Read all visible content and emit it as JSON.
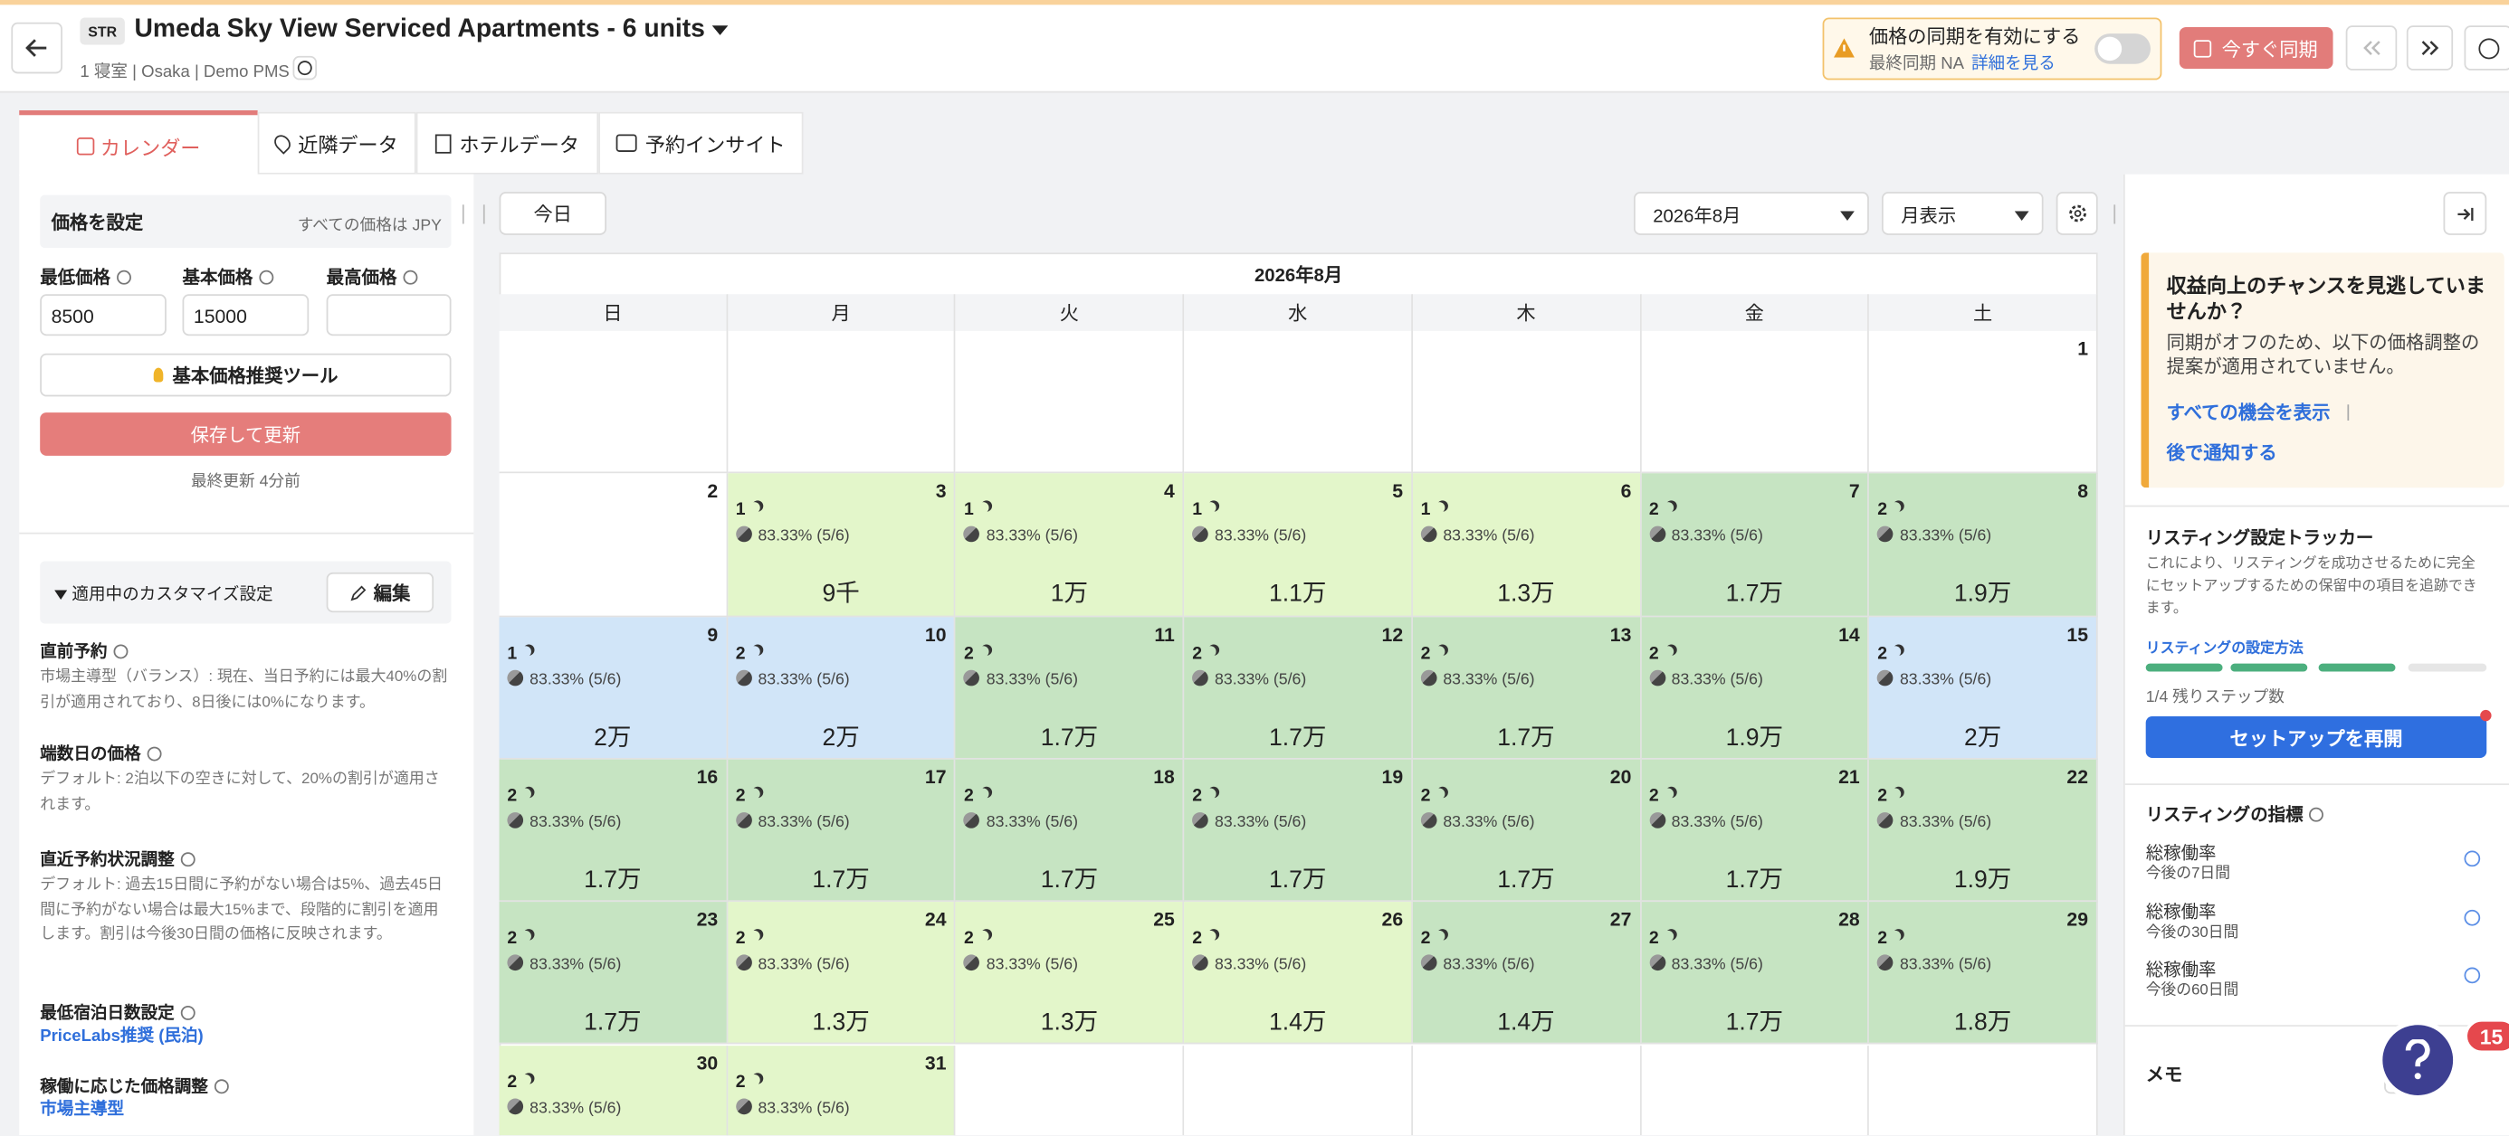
{
  "header": {
    "badge": "STR",
    "title": "Umeda Sky View Serviced Apartments - 6 units",
    "subtitle": "1 寝室 | Osaka | Demo PMS"
  },
  "sync": {
    "title": "価格の同期を有効にする",
    "last_sync": "最終同期 NA",
    "details_link": "詳細を見る",
    "sync_button": "今すぐ同期"
  },
  "tabs": [
    "カレンダー",
    "近隣データ",
    "ホテルデータ",
    "予約インサイト"
  ],
  "price_settings": {
    "title": "価格を設定",
    "currency_note": "すべての価格は JPY",
    "fields": [
      {
        "label": "最低価格",
        "value": "8500"
      },
      {
        "label": "基本価格",
        "value": "15000"
      },
      {
        "label": "最高価格"
      }
    ],
    "tool_button": "基本価格推奨ツール",
    "save_button": "保存して更新",
    "last_updated": "最終更新 4分前"
  },
  "customizations": {
    "title": "適用中のカスタマイズ設定",
    "edit_button": "編集",
    "items": [
      {
        "title": "直前予約",
        "description": "市場主導型（バランス）: 現在、当日予約には最大40%の割引が適用されており、8日後には0%になります。"
      },
      {
        "title": "端数日の価格",
        "description": "デフォルト: 2泊以下の空きに対して、20%の割引が適用されます。"
      },
      {
        "title": "直近予約状況調整",
        "description": "デフォルト: 過去15日間に予約がない場合は5%、過去45日間に予約がない場合は最大15%まで、段階的に割引を適用します。割引は今後30日間の価格に反映されます。"
      },
      {
        "title": "最低宿泊日数設定",
        "link": "PriceLabs推奨 (民泊)"
      },
      {
        "title": "稼働に応じた価格調整",
        "link": "市場主導型"
      }
    ]
  },
  "calendar": {
    "today_button": "今日",
    "month_select": "2026年8月",
    "view_select": "月表示",
    "month_title": "2026年8月",
    "weekdays": [
      "日",
      "月",
      "火",
      "水",
      "木",
      "金",
      "土"
    ],
    "days": [
      null,
      null,
      null,
      null,
      null,
      null,
      {
        "day": 1
      },
      {
        "day": 2
      },
      {
        "day": 3,
        "nights": 1,
        "occupancy": "83.33% (5/6)",
        "price": "9千",
        "color": "#e3f6ca"
      },
      {
        "day": 4,
        "nights": 1,
        "occupancy": "83.33% (5/6)",
        "price": "1万",
        "color": "#e3f6ca"
      },
      {
        "day": 5,
        "nights": 1,
        "occupancy": "83.33% (5/6)",
        "price": "1.1万",
        "color": "#e3f6ca"
      },
      {
        "day": 6,
        "nights": 1,
        "occupancy": "83.33% (5/6)",
        "price": "1.3万",
        "color": "#e3f6ca"
      },
      {
        "day": 7,
        "nights": 2,
        "occupancy": "83.33% (5/6)",
        "price": "1.7万",
        "color": "#c6e4c2"
      },
      {
        "day": 8,
        "nights": 2,
        "occupancy": "83.33% (5/6)",
        "price": "1.9万",
        "color": "#c6e4c2"
      },
      {
        "day": 9,
        "nights": 1,
        "occupancy": "83.33% (5/6)",
        "price": "2万",
        "color": "#d1e5f8"
      },
      {
        "day": 10,
        "nights": 2,
        "occupancy": "83.33% (5/6)",
        "price": "2万",
        "color": "#d1e5f8"
      },
      {
        "day": 11,
        "nights": 2,
        "occupancy": "83.33% (5/6)",
        "price": "1.7万",
        "color": "#c6e4c2"
      },
      {
        "day": 12,
        "nights": 2,
        "occupancy": "83.33% (5/6)",
        "price": "1.7万",
        "color": "#c6e4c2"
      },
      {
        "day": 13,
        "nights": 2,
        "occupancy": "83.33% (5/6)",
        "price": "1.7万",
        "color": "#c6e4c2"
      },
      {
        "day": 14,
        "nights": 2,
        "occupancy": "83.33% (5/6)",
        "price": "1.9万",
        "color": "#c6e4c2"
      },
      {
        "day": 15,
        "nights": 2,
        "occupancy": "83.33% (5/6)",
        "price": "2万",
        "color": "#d1e5f8"
      },
      {
        "day": 16,
        "nights": 2,
        "occupancy": "83.33% (5/6)",
        "price": "1.7万",
        "color": "#c6e4c2"
      },
      {
        "day": 17,
        "nights": 2,
        "occupancy": "83.33% (5/6)",
        "price": "1.7万",
        "color": "#c6e4c2"
      },
      {
        "day": 18,
        "nights": 2,
        "occupancy": "83.33% (5/6)",
        "price": "1.7万",
        "color": "#c6e4c2"
      },
      {
        "day": 19,
        "nights": 2,
        "occupancy": "83.33% (5/6)",
        "price": "1.7万",
        "color": "#c6e4c2"
      },
      {
        "day": 20,
        "nights": 2,
        "occupancy": "83.33% (5/6)",
        "price": "1.7万",
        "color": "#c6e4c2"
      },
      {
        "day": 21,
        "nights": 2,
        "occupancy": "83.33% (5/6)",
        "price": "1.7万",
        "color": "#c6e4c2"
      },
      {
        "day": 22,
        "nights": 2,
        "occupancy": "83.33% (5/6)",
        "price": "1.9万",
        "color": "#c6e4c2"
      },
      {
        "day": 23,
        "nights": 2,
        "occupancy": "83.33% (5/6)",
        "price": "1.7万",
        "color": "#c6e4c2"
      },
      {
        "day": 24,
        "nights": 2,
        "occupancy": "83.33% (5/6)",
        "price": "1.3万",
        "color": "#e3f6ca"
      },
      {
        "day": 25,
        "nights": 2,
        "occupancy": "83.33% (5/6)",
        "price": "1.3万",
        "color": "#e3f6ca"
      },
      {
        "day": 26,
        "nights": 2,
        "occupancy": "83.33% (5/6)",
        "price": "1.4万",
        "color": "#e3f6ca"
      },
      {
        "day": 27,
        "nights": 2,
        "occupancy": "83.33% (5/6)",
        "price": "1.4万",
        "color": "#c6e4c2"
      },
      {
        "day": 28,
        "nights": 2,
        "occupancy": "83.33% (5/6)",
        "price": "1.7万",
        "color": "#c6e4c2"
      },
      {
        "day": 29,
        "nights": 2,
        "occupancy": "83.33% (5/6)",
        "price": "1.8万",
        "color": "#c6e4c2"
      },
      {
        "day": 30,
        "nights": 2,
        "occupancy": "83.33% (5/6)",
        "color": "#e3f6ca"
      },
      {
        "day": 31,
        "nights": 2,
        "occupancy": "83.33% (5/6)",
        "color": "#e3f6ca"
      }
    ]
  },
  "opportunity": {
    "title": "収益向上のチャンスを見逃していませんか？",
    "body": "同期がオフのため、以下の価格調整の提案が適用されていません。",
    "view_all_link": "すべての機会を表示",
    "remind_link": "後で通知する"
  },
  "tracker": {
    "title": "リスティング設定トラッカー",
    "description": "これにより、リスティングを成功させるために完全にセットアップするための保留中の項目を追跡できます。",
    "howto_link": "リスティングの設定方法",
    "remaining": "1/4 残りステップ数",
    "resume_button": "セットアップを再開"
  },
  "metrics": {
    "title": "リスティングの指標",
    "items": [
      {
        "label": "総稼働率",
        "period": "今後の7日間"
      },
      {
        "label": "総稼働率",
        "period": "今後の30日間"
      },
      {
        "label": "総稼働率",
        "period": "今後の60日間"
      }
    ]
  },
  "memo": "メモ",
  "help_badge": "15"
}
